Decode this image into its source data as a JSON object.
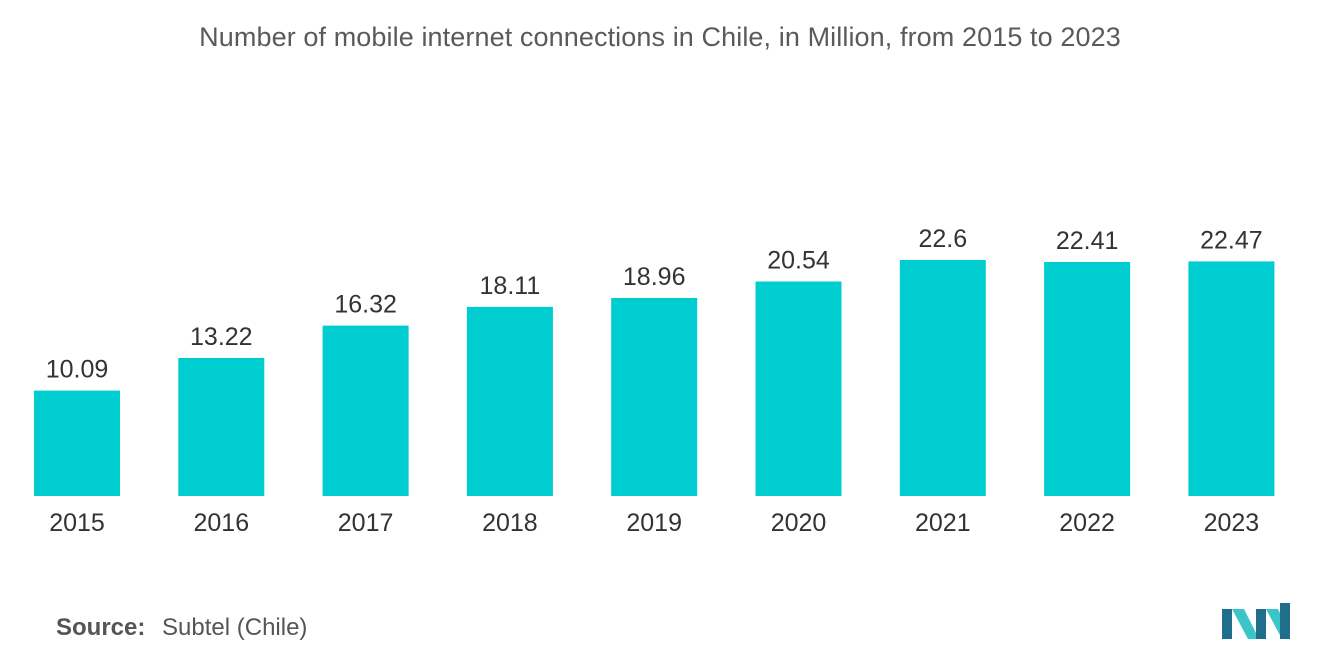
{
  "chart_data": {
    "type": "bar",
    "title": "Number of mobile internet connections in Chile, in Million, from 2015 to 2023",
    "categories": [
      "2015",
      "2016",
      "2017",
      "2018",
      "2019",
      "2020",
      "2021",
      "2022",
      "2023"
    ],
    "values": [
      10.09,
      13.22,
      16.32,
      18.11,
      18.96,
      20.54,
      22.6,
      22.41,
      22.47
    ],
    "value_labels": [
      "10.09",
      "13.22",
      "16.32",
      "18.11",
      "18.96",
      "20.54",
      "22.6",
      "22.41",
      "22.47"
    ],
    "xlabel": "",
    "ylabel": "",
    "ylim": [
      0,
      22.6
    ],
    "grid": false,
    "bar_color": "#00cdcf"
  },
  "footer": {
    "source_label": "Source:",
    "source_text": "Subtel (Chile)"
  },
  "colors": {
    "bar": "#00cdcf",
    "logo_dark": "#1f6f8b",
    "logo_light": "#3cc5c9"
  },
  "icons": {
    "logo": "mordor-intelligence-logo-icon"
  }
}
